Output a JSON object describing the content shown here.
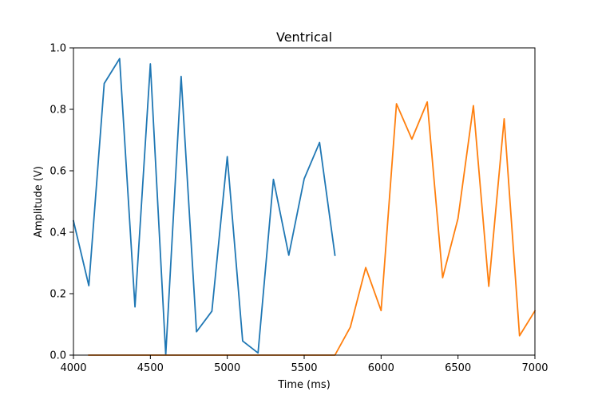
{
  "chart_data": {
    "type": "line",
    "title": "Ventrical",
    "xlabel": "Time (ms)",
    "ylabel": "Amplitude (V)",
    "xlim": [
      4000,
      7000
    ],
    "ylim": [
      0,
      1.0
    ],
    "xticks": [
      4000,
      4500,
      5000,
      5500,
      6000,
      6500,
      7000
    ],
    "xtick_labels": [
      "4000",
      "4500",
      "5000",
      "5500",
      "6000",
      "6500",
      "7000"
    ],
    "yticks": [
      0.0,
      0.2,
      0.4,
      0.6,
      0.8,
      1.0
    ],
    "ytick_labels": [
      "0.0",
      "0.2",
      "0.4",
      "0.6",
      "0.8",
      "1.0"
    ],
    "grid": false,
    "series": [
      {
        "color": "#1f77b4",
        "x": [
          4000,
          4100,
          4200,
          4300,
          4400,
          4500,
          4600,
          4700,
          4800,
          4900,
          5000,
          5100,
          5200,
          5300,
          5400,
          5500,
          5600,
          5700
        ],
        "y": [
          0.437,
          0.226,
          0.884,
          0.965,
          0.157,
          0.948,
          0.001,
          0.907,
          0.076,
          0.143,
          0.646,
          0.046,
          0.007,
          0.572,
          0.325,
          0.574,
          0.692,
          0.325
        ]
      },
      {
        "color": "#ff7f0e",
        "x": [
          4100,
          4200,
          4300,
          4400,
          4500,
          4600,
          4700,
          4800,
          4900,
          5000,
          5100,
          5200,
          5300,
          5400,
          5500,
          5600,
          5700,
          5800,
          5900,
          6000,
          6100,
          6200,
          6300,
          6400,
          6500,
          6600,
          6700,
          6800,
          6900,
          7000
        ],
        "y": [
          0,
          0,
          0,
          0,
          0,
          0,
          0,
          0,
          0,
          0,
          0,
          0,
          0,
          0,
          0,
          0,
          0,
          0.091,
          0.285,
          0.145,
          0.818,
          0.703,
          0.824,
          0.252,
          0.445,
          0.812,
          0.224,
          0.769,
          0.063,
          0.144
        ]
      }
    ]
  }
}
